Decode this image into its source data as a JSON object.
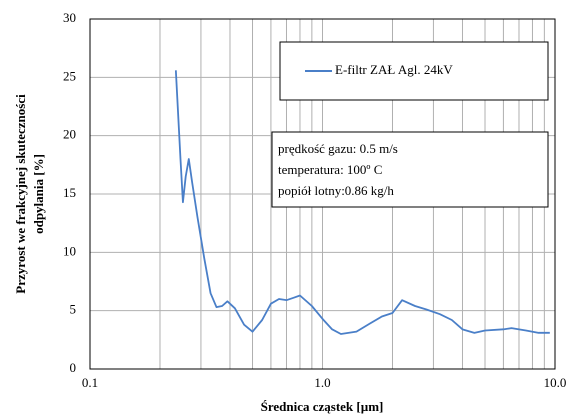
{
  "chart_data": {
    "type": "line",
    "xlabel": "Średnica cząstek [µm]",
    "ylabel": [
      "Przyrost we frakcyjnej skuteczności",
      "odpylania [%]"
    ],
    "xscale": "log",
    "xlim": [
      0.1,
      10
    ],
    "xticks": [
      0.1,
      {
        "value": 1,
        "label": "1.0"
      },
      {
        "value": 10,
        "label": "10.0"
      }
    ],
    "ylim": [
      0,
      30
    ],
    "yticks": [
      0,
      5,
      10,
      15,
      20,
      25,
      30
    ],
    "grid": true,
    "legend": "upper right",
    "annotations": [
      "prędkość gazu: 0.5 m/s",
      "temperatura: 100º C",
      "popiół lotny:0.86 kg/h"
    ],
    "x": [
      0.234,
      0.245,
      0.251,
      0.258,
      0.266,
      0.275,
      0.29,
      0.31,
      0.33,
      0.35,
      0.37,
      0.39,
      0.42,
      0.46,
      0.5,
      0.55,
      0.6,
      0.65,
      0.7,
      0.75,
      0.8,
      0.9,
      1.0,
      1.1,
      1.2,
      1.4,
      1.6,
      1.8,
      2.0,
      2.2,
      2.5,
      2.8,
      3.2,
      3.6,
      4.0,
      4.5,
      5.0,
      6.0,
      6.5,
      7.5,
      8.5,
      9.5
    ],
    "series": [
      {
        "name": "E-filtr ZAŁ Agl. 24kV",
        "color": "#4a7fc8",
        "values": [
          25.6,
          18,
          14.3,
          16.5,
          18,
          16,
          13,
          9.5,
          6.5,
          5.3,
          5.4,
          5.8,
          5.2,
          3.8,
          3.2,
          4.2,
          5.6,
          6,
          5.9,
          6.1,
          6.3,
          5.4,
          4.3,
          3.4,
          3.0,
          3.2,
          3.9,
          4.5,
          4.8,
          5.9,
          5.4,
          5.1,
          4.7,
          4.2,
          3.4,
          3.1,
          3.3,
          3.4,
          3.5,
          3.3,
          3.1,
          3.1
        ]
      }
    ]
  }
}
